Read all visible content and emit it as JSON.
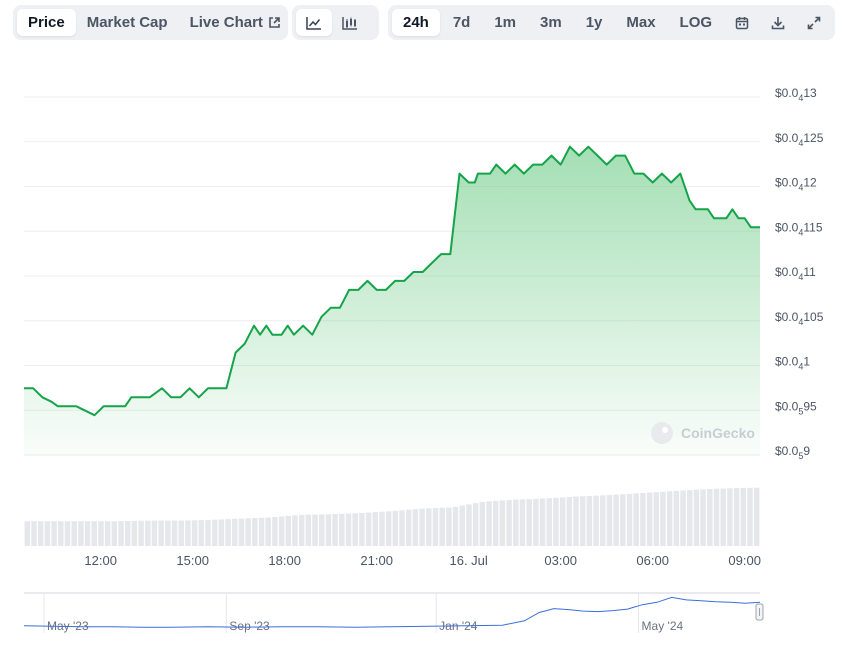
{
  "toolbar": {
    "tabs": [
      {
        "label": "Price",
        "active": true
      },
      {
        "label": "Market Cap",
        "active": false
      },
      {
        "label": "Live Chart",
        "active": false,
        "icon": "external-link-icon"
      }
    ],
    "chart_types": [
      {
        "icon": "line-chart-icon",
        "active": true
      },
      {
        "icon": "candlestick-icon",
        "active": false
      }
    ],
    "ranges": [
      {
        "label": "24h",
        "active": true
      },
      {
        "label": "7d",
        "active": false
      },
      {
        "label": "1m",
        "active": false
      },
      {
        "label": "3m",
        "active": false
      },
      {
        "label": "1y",
        "active": false
      },
      {
        "label": "Max",
        "active": false
      },
      {
        "label": "LOG",
        "active": false
      }
    ],
    "tools": [
      {
        "icon": "calendar-icon"
      },
      {
        "icon": "download-icon"
      },
      {
        "icon": "expand-icon"
      }
    ]
  },
  "watermark": "CoinGecko",
  "colors": {
    "line": "#16a34a",
    "area_top": "#86d49b",
    "volume": "#e5e7eb",
    "navigator_line": "#3b6fd6",
    "grid": "#ebedf0"
  },
  "chart_data": {
    "type": "area",
    "title": "",
    "xlabel": "",
    "ylabel": "",
    "y_axis": {
      "range": [
        8.9e-06,
        1.3e-05
      ],
      "ticks": [
        {
          "prefix": "$0.0",
          "sub": "5",
          "rest": "9",
          "value": 9e-06
        },
        {
          "prefix": "$0.0",
          "sub": "5",
          "rest": "95",
          "value": 9.5e-06
        },
        {
          "prefix": "$0.0",
          "sub": "4",
          "rest": "1",
          "value": 1e-05
        },
        {
          "prefix": "$0.0",
          "sub": "4",
          "rest": "105",
          "value": 1.05e-05
        },
        {
          "prefix": "$0.0",
          "sub": "4",
          "rest": "11",
          "value": 1.1e-05
        },
        {
          "prefix": "$0.0",
          "sub": "4",
          "rest": "115",
          "value": 1.15e-05
        },
        {
          "prefix": "$0.0",
          "sub": "4",
          "rest": "12",
          "value": 1.2e-05
        },
        {
          "prefix": "$0.0",
          "sub": "4",
          "rest": "125",
          "value": 1.25e-05
        },
        {
          "prefix": "$0.0",
          "sub": "4",
          "rest": "13",
          "value": 1.3e-05
        }
      ]
    },
    "x_axis": {
      "range_hours": [
        9.5,
        33.5
      ],
      "ticks": [
        {
          "label": "12:00",
          "hour": 12
        },
        {
          "label": "15:00",
          "hour": 15
        },
        {
          "label": "18:00",
          "hour": 18
        },
        {
          "label": "21:00",
          "hour": 21
        },
        {
          "label": "16. Jul",
          "hour": 24
        },
        {
          "label": "03:00",
          "hour": 27
        },
        {
          "label": "06:00",
          "hour": 30
        },
        {
          "label": "09:00",
          "hour": 33
        }
      ]
    },
    "price_series": {
      "hours": [
        9.5,
        9.8,
        10.1,
        10.4,
        10.6,
        10.9,
        11.2,
        11.5,
        11.8,
        12.1,
        12.4,
        12.8,
        13.0,
        13.3,
        13.6,
        14.0,
        14.3,
        14.6,
        14.9,
        15.2,
        15.5,
        15.8,
        16.1,
        16.4,
        16.7,
        17.0,
        17.2,
        17.4,
        17.6,
        17.9,
        18.1,
        18.3,
        18.6,
        18.9,
        19.2,
        19.5,
        19.8,
        20.1,
        20.4,
        20.7,
        21.0,
        21.3,
        21.6,
        21.9,
        22.2,
        22.5,
        22.8,
        23.1,
        23.4,
        23.7,
        24.0,
        24.2,
        24.3,
        24.5,
        24.7,
        24.9,
        25.2,
        25.5,
        25.8,
        26.1,
        26.4,
        26.7,
        27.0,
        27.3,
        27.6,
        27.9,
        28.2,
        28.5,
        28.8,
        29.1,
        29.4,
        29.7,
        30.0,
        30.3,
        30.6,
        30.9,
        31.2,
        31.4,
        31.6,
        31.8,
        32.0,
        32.2,
        32.4,
        32.6,
        32.8,
        33.0,
        33.2,
        33.5
      ],
      "values": [
        9.7e-06,
        9.7e-06,
        9.6e-06,
        9.55e-06,
        9.5e-06,
        9.5e-06,
        9.5e-06,
        9.45e-06,
        9.4e-06,
        9.5e-06,
        9.5e-06,
        9.5e-06,
        9.6e-06,
        9.6e-06,
        9.6e-06,
        9.7e-06,
        9.6e-06,
        9.6e-06,
        9.7e-06,
        9.6e-06,
        9.7e-06,
        9.7e-06,
        9.7e-06,
        1.01e-05,
        1.02e-05,
        1.04e-05,
        1.03e-05,
        1.04e-05,
        1.03e-05,
        1.03e-05,
        1.04e-05,
        1.03e-05,
        1.04e-05,
        1.03e-05,
        1.05e-05,
        1.06e-05,
        1.06e-05,
        1.08e-05,
        1.08e-05,
        1.09e-05,
        1.08e-05,
        1.08e-05,
        1.09e-05,
        1.09e-05,
        1.1e-05,
        1.1e-05,
        1.11e-05,
        1.12e-05,
        1.12e-05,
        1.21e-05,
        1.2e-05,
        1.2e-05,
        1.21e-05,
        1.21e-05,
        1.21e-05,
        1.22e-05,
        1.21e-05,
        1.22e-05,
        1.21e-05,
        1.22e-05,
        1.22e-05,
        1.23e-05,
        1.22e-05,
        1.24e-05,
        1.23e-05,
        1.24e-05,
        1.23e-05,
        1.22e-05,
        1.23e-05,
        1.23e-05,
        1.21e-05,
        1.21e-05,
        1.2e-05,
        1.21e-05,
        1.2e-05,
        1.21e-05,
        1.18e-05,
        1.17e-05,
        1.17e-05,
        1.17e-05,
        1.16e-05,
        1.16e-05,
        1.16e-05,
        1.17e-05,
        1.16e-05,
        1.16e-05,
        1.15e-05,
        1.15e-05
      ]
    },
    "volume_series": {
      "hours": [
        9.5,
        10.5,
        11.5,
        12.5,
        13.5,
        14.5,
        15.5,
        16.5,
        17.5,
        18.5,
        19.5,
        20.5,
        21.5,
        22.5,
        23.5,
        24.5,
        25.5,
        26.5,
        27.5,
        28.5,
        29.5,
        30.5,
        31.5,
        32.5,
        33.5
      ],
      "relative": [
        0.39,
        0.39,
        0.39,
        0.39,
        0.4,
        0.4,
        0.41,
        0.43,
        0.45,
        0.49,
        0.5,
        0.52,
        0.55,
        0.59,
        0.61,
        0.7,
        0.73,
        0.75,
        0.78,
        0.8,
        0.83,
        0.86,
        0.89,
        0.91,
        0.92
      ]
    },
    "navigator": {
      "type": "line",
      "labels": [
        {
          "label": "May '23",
          "t": 0.0
        },
        {
          "label": "Sep '23",
          "t": 0.275
        },
        {
          "label": "Jan '24",
          "t": 0.56
        },
        {
          "label": "May '24",
          "t": 0.835
        }
      ],
      "t": [
        0,
        0.04,
        0.08,
        0.12,
        0.16,
        0.2,
        0.25,
        0.3,
        0.35,
        0.4,
        0.45,
        0.5,
        0.55,
        0.6,
        0.65,
        0.68,
        0.7,
        0.72,
        0.74,
        0.76,
        0.78,
        0.8,
        0.82,
        0.84,
        0.86,
        0.88,
        0.9,
        0.92,
        0.94,
        0.96,
        0.98,
        1.0
      ],
      "values": [
        4.5e-06,
        4.4e-06,
        4.3e-06,
        4.3e-06,
        4.2e-06,
        4.2e-06,
        4.3e-06,
        4.2e-06,
        4.3e-06,
        4.3e-06,
        4.2e-06,
        4.3e-06,
        4.4e-06,
        4.5e-06,
        4.6e-06,
        5.5e-06,
        7.2e-06,
        8e-06,
        7.8e-06,
        7.5e-06,
        7.4e-06,
        7.6e-06,
        7.9e-06,
        8.8e-06,
        9.3e-06,
        1.03e-05,
        9.8e-06,
        9.6e-06,
        9.4e-06,
        9.3e-06,
        9.1e-06,
        9.3e-06
      ]
    }
  }
}
